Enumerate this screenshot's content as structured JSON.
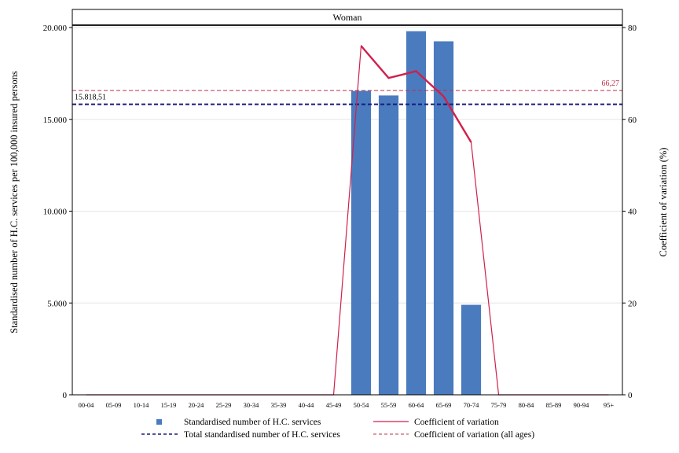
{
  "chart_data": {
    "type": "bar",
    "panel_title": "Woman",
    "categories": [
      "00-04",
      "05-09",
      "10-14",
      "15-19",
      "20-24",
      "25-29",
      "30-34",
      "35-39",
      "40-44",
      "45-49",
      "50-54",
      "55-59",
      "60-64",
      "65-69",
      "70-74",
      "75-79",
      "80-84",
      "85-89",
      "90-94",
      "95+"
    ],
    "series": [
      {
        "name": "Standardised number of H.C. services",
        "axis": "left",
        "kind": "bar",
        "color": "#4a7bbf",
        "values": [
          0,
          0,
          0,
          0,
          0,
          0,
          0,
          0,
          0,
          0,
          16550,
          16300,
          19800,
          19250,
          4900,
          0,
          0,
          0,
          0,
          0
        ]
      },
      {
        "name": "Coefficient of variation",
        "axis": "right",
        "kind": "line",
        "color": "#d0204a",
        "values": [
          0,
          0,
          0,
          0,
          0,
          0,
          0,
          0,
          0,
          0,
          76,
          69,
          70.5,
          65,
          55,
          0,
          0,
          0,
          0,
          0
        ]
      }
    ],
    "reference_lines": [
      {
        "name": "Total standardised number of H.C. services",
        "axis": "left",
        "value": 15818.51,
        "label": "15.818,51",
        "color": "#1a1a7a",
        "style": "dashed"
      },
      {
        "name": "Coefficient of variation (all ages)",
        "axis": "right",
        "value": 66.27,
        "label": "66,27",
        "color": "#c0304a",
        "style": "dashed"
      }
    ],
    "ylabel": "Standardised number of H.C. services per 100,000 insured persons",
    "y2label": "Coefficient of variation (%)",
    "ylim": [
      0,
      20000
    ],
    "y2lim": [
      0,
      80
    ],
    "yticks": [
      0,
      5000,
      10000,
      15000,
      20000
    ],
    "ytick_labels": [
      "0",
      "5.000",
      "10.000",
      "15.000",
      "20.000"
    ],
    "y2ticks": [
      0,
      20,
      40,
      60,
      80
    ],
    "y2tick_labels": [
      "0",
      "20",
      "40",
      "60",
      "80"
    ],
    "grid": true,
    "legend_position": "bottom"
  }
}
